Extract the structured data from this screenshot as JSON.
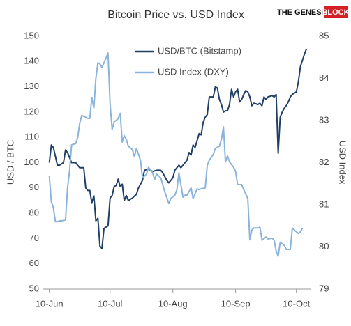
{
  "chart_data": {
    "type": "line",
    "title": "Bitcoin Price vs. USD Index",
    "ylabel": "USD / BTC",
    "y2label": "USD Index",
    "xlim": [
      "7-Jun",
      "17-Oct"
    ],
    "xticks": [
      "10-Jun",
      "10-Jul",
      "10-Aug",
      "10-Sep",
      "10-Oct"
    ],
    "ylim": [
      50,
      150
    ],
    "yticks": [
      50,
      60,
      70,
      80,
      90,
      100,
      110,
      120,
      130,
      140,
      150
    ],
    "y2lim": [
      79,
      85
    ],
    "y2ticks": [
      79,
      80,
      81,
      82,
      83,
      84,
      85
    ],
    "grid": false,
    "series": [
      {
        "name": "USD/BTC (Bitstamp)",
        "color": "#1f3f66",
        "x": [
          "10-Jun",
          "11-Jun",
          "12-Jun",
          "14-Jun",
          "15-Jun",
          "17-Jun",
          "18-Jun",
          "19-Jun",
          "21-Jun",
          "23-Jun",
          "25-Jun",
          "27-Jun",
          "28-Jun",
          "29-Jun",
          "30-Jun",
          "1-Jul",
          "2-Jul",
          "3-Jul",
          "4-Jul",
          "5-Jul",
          "6-Jul",
          "7-Jul",
          "8-Jul",
          "9-Jul",
          "10-Jul",
          "11-Jul",
          "12-Jul",
          "13-Jul",
          "14-Jul",
          "15-Jul",
          "16-Jul",
          "17-Jul",
          "18-Jul",
          "19-Jul",
          "21-Jul",
          "23-Jul",
          "24-Jul",
          "26-Jul",
          "27-Jul",
          "29-Jul",
          "31-Jul",
          "2-Aug",
          "4-Aug",
          "5-Aug",
          "7-Aug",
          "8-Aug",
          "10-Aug",
          "11-Aug",
          "13-Aug",
          "14-Aug",
          "16-Aug",
          "17-Aug",
          "18-Aug",
          "19-Aug",
          "20-Aug",
          "21-Aug",
          "23-Aug",
          "24-Aug",
          "25-Aug",
          "26-Aug",
          "27-Aug",
          "28-Aug",
          "29-Aug",
          "30-Aug",
          "31-Aug",
          "1-Sep",
          "2-Sep",
          "3-Sep",
          "4-Sep",
          "5-Sep",
          "6-Sep",
          "7-Sep",
          "8-Sep",
          "9-Sep",
          "10-Sep",
          "11-Sep",
          "12-Sep",
          "13-Sep",
          "14-Sep",
          "15-Sep",
          "16-Sep",
          "17-Sep",
          "18-Sep",
          "19-Sep",
          "21-Sep",
          "22-Sep",
          "23-Sep",
          "24-Sep",
          "25-Sep",
          "26-Sep",
          "28-Sep",
          "29-Sep",
          "30-Sep",
          "1-Oct",
          "2-Oct",
          "3-Oct",
          "4-Oct",
          "5-Oct",
          "6-Oct",
          "7-Oct",
          "8-Oct",
          "9-Oct",
          "10-Oct",
          "11-Oct",
          "12-Oct",
          "13-Oct",
          "14-Oct",
          "15-Oct"
        ],
        "values": [
          100,
          107,
          106,
          99,
          99,
          100,
          105,
          104,
          100,
          100,
          98,
          98,
          90,
          89,
          89,
          84,
          87,
          77,
          78,
          67,
          66,
          74,
          74.5,
          75,
          86,
          87,
          90.5,
          91,
          93.5,
          90.5,
          91.5,
          85,
          87,
          85,
          86,
          87.5,
          90,
          93,
          97,
          97.5,
          96.5,
          97,
          97,
          96,
          93,
          92,
          94,
          97,
          99,
          98,
          100,
          101,
          104,
          103,
          107,
          106,
          111.5,
          111,
          116,
          118,
          119,
          126,
          126,
          126,
          130,
          129.5,
          125,
          123,
          120,
          120.5,
          120.5,
          123,
          129,
          126,
          128,
          129,
          124,
          125,
          127,
          128.5,
          128,
          126,
          122.5,
          123.5,
          123,
          123.5,
          122.5,
          126,
          125,
          126,
          126.5,
          126,
          127,
          103.7,
          118,
          120,
          121.5,
          122.5,
          124,
          126,
          127,
          127.5,
          128,
          132,
          138,
          140.5,
          143,
          145
        ]
      },
      {
        "name": "USD Index (DXY)",
        "color": "#8ab4dc",
        "axis": "y2",
        "x": [
          "10-Jun",
          "11-Jun",
          "12-Jun",
          "13-Jun",
          "14-Jun",
          "15-Jun",
          "16-Jun",
          "18-Jun",
          "19-Jun",
          "20-Jun",
          "21-Jun",
          "22-Jun",
          "23-Jun",
          "24-Jun",
          "25-Jun",
          "26-Jun",
          "28-Jun",
          "29-Jun",
          "30-Jun",
          "1-Jul",
          "2-Jul",
          "3-Jul",
          "4-Jul",
          "5-Jul",
          "6-Jul",
          "7-Jul",
          "9-Jul",
          "10-Jul",
          "11-Jul",
          "12-Jul",
          "13-Jul",
          "14-Jul",
          "15-Jul",
          "16-Jul",
          "17-Jul",
          "18-Jul",
          "19-Jul",
          "21-Jul",
          "22-Jul",
          "23-Jul",
          "25-Jul",
          "26-Jul",
          "28-Jul",
          "29-Jul",
          "31-Jul",
          "1-Aug",
          "2-Aug",
          "4-Aug",
          "5-Aug",
          "6-Aug",
          "8-Aug",
          "9-Aug",
          "11-Aug",
          "12-Aug",
          "13-Aug",
          "15-Aug",
          "16-Aug",
          "17-Aug",
          "19-Aug",
          "20-Aug",
          "22-Aug",
          "23-Aug",
          "24-Aug",
          "26-Aug",
          "27-Aug",
          "28-Aug",
          "30-Aug",
          "31-Aug",
          "2-Sep",
          "3-Sep",
          "4-Sep",
          "5-Sep",
          "6-Sep",
          "7-Sep",
          "9-Sep",
          "10-Sep",
          "11-Sep",
          "13-Sep",
          "14-Sep",
          "16-Sep",
          "17-Sep",
          "18-Sep",
          "19-Sep",
          "21-Sep",
          "22-Sep",
          "23-Sep",
          "25-Sep",
          "26-Sep",
          "28-Sep",
          "29-Sep",
          "30-Sep",
          "1-Oct",
          "2-Oct",
          "4-Oct",
          "5-Oct",
          "7-Oct",
          "8-Oct",
          "9-Oct",
          "11-Oct",
          "12-Oct",
          "13-Oct"
        ],
        "values": [
          81.68,
          81.07,
          80.93,
          80.6,
          80.6,
          80.62,
          80.62,
          80.64,
          81.4,
          81.81,
          82.42,
          82.44,
          82.45,
          82.59,
          82.93,
          83.12,
          83.08,
          83.05,
          83.05,
          83.55,
          83.3,
          84.0,
          84.37,
          84.34,
          84.26,
          84.37,
          84.6,
          83.38,
          82.79,
          82.97,
          83.0,
          83.05,
          83.17,
          82.49,
          82.64,
          82.55,
          82.39,
          82.31,
          82.14,
          82.34,
          82.06,
          81.64,
          81.73,
          81.89,
          81.76,
          81.6,
          81.73,
          81.64,
          81.48,
          81.31,
          81.03,
          81.15,
          81.23,
          81.36,
          81.76,
          81.18,
          81.23,
          81.23,
          81.4,
          81.15,
          81.38,
          81.36,
          81.38,
          81.4,
          81.93,
          82.06,
          82.2,
          82.34,
          82.39,
          82.55,
          82.85,
          82.02,
          82.16,
          82.02,
          81.89,
          81.79,
          81.48,
          81.48,
          81.36,
          81.15,
          80.17,
          80.4,
          80.45,
          80.45,
          80.47,
          80.16,
          80.24,
          80.19,
          80.21,
          80.16,
          79.91,
          79.78,
          80.11,
          80.04,
          79.94,
          79.94,
          80.45,
          80.4,
          80.32,
          80.36,
          80.44
        ]
      }
    ]
  },
  "logo": {
    "text": "THE GENESIS",
    "highlight": "BLOCK"
  }
}
